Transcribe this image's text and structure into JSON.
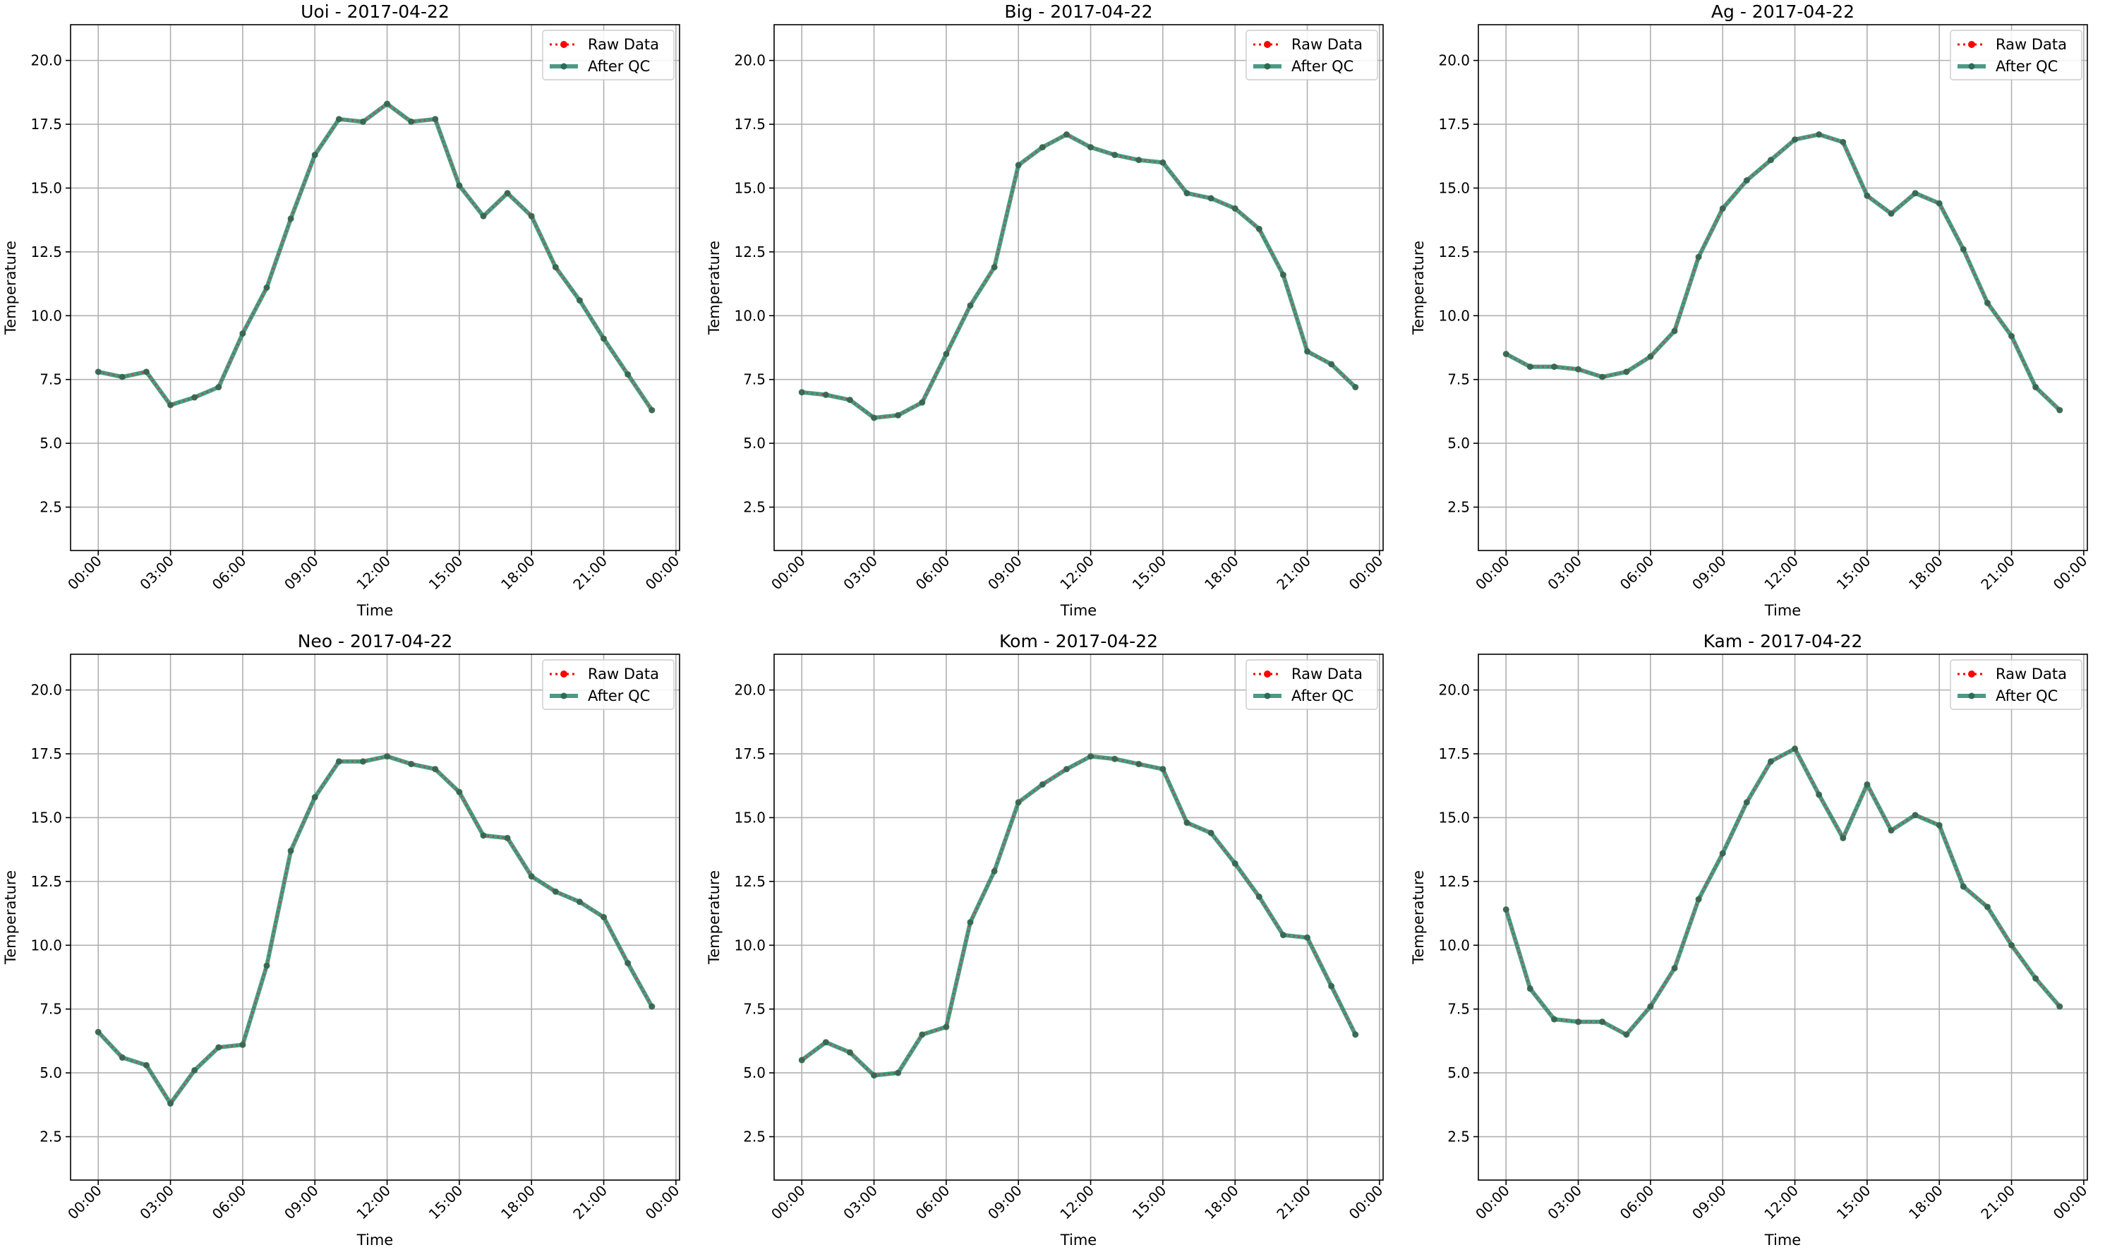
{
  "chart_data": [
    {
      "type": "line",
      "title": "Uoi - 2017-04-22",
      "xlabel": "Time",
      "ylabel": "Temperature",
      "ylim": [
        0.8,
        21.4
      ],
      "yticks": [
        "2.5",
        "5.0",
        "7.5",
        "10.0",
        "12.5",
        "15.0",
        "17.5",
        "20.0"
      ],
      "xticks": [
        "00:00",
        "03:00",
        "06:00",
        "09:00",
        "12:00",
        "15:00",
        "18:00",
        "21:00",
        "00:00"
      ],
      "grid": true,
      "legend": "top-right",
      "x": [
        "00:00",
        "01:00",
        "02:00",
        "03:00",
        "04:00",
        "05:00",
        "06:00",
        "07:00",
        "08:00",
        "09:00",
        "10:00",
        "11:00",
        "12:00",
        "13:00",
        "14:00",
        "15:00",
        "16:00",
        "17:00",
        "18:00",
        "19:00",
        "20:00",
        "21:00",
        "22:00",
        "23:00"
      ],
      "series": [
        {
          "name": "Raw Data",
          "color": "#ff0000",
          "values": [
            7.8,
            7.6,
            7.8,
            6.5,
            6.8,
            7.2,
            9.3,
            11.1,
            13.8,
            16.3,
            17.7,
            17.6,
            18.3,
            17.6,
            17.7,
            15.1,
            13.9,
            14.8,
            13.9,
            11.9,
            10.6,
            9.1,
            7.7,
            6.3
          ]
        },
        {
          "name": "After QC",
          "color": "#2b8a6e",
          "values": [
            7.8,
            7.6,
            7.8,
            6.5,
            6.8,
            7.2,
            9.3,
            11.1,
            13.8,
            16.3,
            17.7,
            17.6,
            18.3,
            17.6,
            17.7,
            15.1,
            13.9,
            14.8,
            13.9,
            11.9,
            10.6,
            9.1,
            7.7,
            6.3
          ]
        }
      ]
    },
    {
      "type": "line",
      "title": "Big - 2017-04-22",
      "xlabel": "Time",
      "ylabel": "Temperature",
      "ylim": [
        0.8,
        21.4
      ],
      "yticks": [
        "2.5",
        "5.0",
        "7.5",
        "10.0",
        "12.5",
        "15.0",
        "17.5",
        "20.0"
      ],
      "xticks": [
        "00:00",
        "03:00",
        "06:00",
        "09:00",
        "12:00",
        "15:00",
        "18:00",
        "21:00",
        "00:00"
      ],
      "grid": true,
      "legend": "top-right",
      "x": [
        "00:00",
        "01:00",
        "02:00",
        "03:00",
        "04:00",
        "05:00",
        "06:00",
        "07:00",
        "08:00",
        "09:00",
        "10:00",
        "11:00",
        "12:00",
        "13:00",
        "14:00",
        "15:00",
        "16:00",
        "17:00",
        "18:00",
        "19:00",
        "20:00",
        "21:00",
        "22:00",
        "23:00"
      ],
      "series": [
        {
          "name": "Raw Data",
          "color": "#ff0000",
          "values": [
            7.0,
            6.9,
            6.7,
            6.0,
            6.1,
            6.6,
            8.5,
            10.4,
            11.9,
            15.9,
            16.6,
            17.1,
            16.6,
            16.3,
            16.1,
            16.0,
            14.8,
            14.6,
            14.2,
            13.4,
            11.6,
            8.6,
            8.1,
            7.2
          ]
        },
        {
          "name": "After QC",
          "color": "#2b8a6e",
          "values": [
            7.0,
            6.9,
            6.7,
            6.0,
            6.1,
            6.6,
            8.5,
            10.4,
            11.9,
            15.9,
            16.6,
            17.1,
            16.6,
            16.3,
            16.1,
            16.0,
            14.8,
            14.6,
            14.2,
            13.4,
            11.6,
            8.6,
            8.1,
            7.2
          ]
        }
      ]
    },
    {
      "type": "line",
      "title": "Ag - 2017-04-22",
      "xlabel": "Time",
      "ylabel": "Temperature",
      "ylim": [
        0.8,
        21.4
      ],
      "yticks": [
        "2.5",
        "5.0",
        "7.5",
        "10.0",
        "12.5",
        "15.0",
        "17.5",
        "20.0"
      ],
      "xticks": [
        "00:00",
        "03:00",
        "06:00",
        "09:00",
        "12:00",
        "15:00",
        "18:00",
        "21:00",
        "00:00"
      ],
      "grid": true,
      "legend": "top-right",
      "x": [
        "00:00",
        "01:00",
        "02:00",
        "03:00",
        "04:00",
        "05:00",
        "06:00",
        "07:00",
        "08:00",
        "09:00",
        "10:00",
        "11:00",
        "12:00",
        "13:00",
        "14:00",
        "15:00",
        "16:00",
        "17:00",
        "18:00",
        "19:00",
        "20:00",
        "21:00",
        "22:00",
        "23:00"
      ],
      "series": [
        {
          "name": "Raw Data",
          "color": "#ff0000",
          "values": [
            8.5,
            8.0,
            8.0,
            7.9,
            7.6,
            7.8,
            8.4,
            9.4,
            12.3,
            14.2,
            15.3,
            16.1,
            16.9,
            17.1,
            16.8,
            14.7,
            14.0,
            14.8,
            14.4,
            12.6,
            10.5,
            9.2,
            7.2,
            6.3
          ]
        },
        {
          "name": "After QC",
          "color": "#2b8a6e",
          "values": [
            8.5,
            8.0,
            8.0,
            7.9,
            7.6,
            7.8,
            8.4,
            9.4,
            12.3,
            14.2,
            15.3,
            16.1,
            16.9,
            17.1,
            16.8,
            14.7,
            14.0,
            14.8,
            14.4,
            12.6,
            10.5,
            9.2,
            7.2,
            6.3
          ]
        }
      ]
    },
    {
      "type": "line",
      "title": "Neo - 2017-04-22",
      "xlabel": "Time",
      "ylabel": "Temperature",
      "ylim": [
        0.8,
        21.4
      ],
      "yticks": [
        "2.5",
        "5.0",
        "7.5",
        "10.0",
        "12.5",
        "15.0",
        "17.5",
        "20.0"
      ],
      "xticks": [
        "00:00",
        "03:00",
        "06:00",
        "09:00",
        "12:00",
        "15:00",
        "18:00",
        "21:00",
        "00:00"
      ],
      "grid": true,
      "legend": "top-right",
      "x": [
        "00:00",
        "01:00",
        "02:00",
        "03:00",
        "04:00",
        "05:00",
        "06:00",
        "07:00",
        "08:00",
        "09:00",
        "10:00",
        "11:00",
        "12:00",
        "13:00",
        "14:00",
        "15:00",
        "16:00",
        "17:00",
        "18:00",
        "19:00",
        "20:00",
        "21:00",
        "22:00",
        "23:00"
      ],
      "series": [
        {
          "name": "Raw Data",
          "color": "#ff0000",
          "values": [
            6.6,
            5.6,
            5.3,
            3.8,
            5.1,
            6.0,
            6.1,
            9.2,
            13.7,
            15.8,
            17.2,
            17.2,
            17.4,
            17.1,
            16.9,
            16.0,
            14.3,
            14.2,
            12.7,
            12.1,
            11.7,
            11.1,
            9.3,
            7.6
          ]
        },
        {
          "name": "After QC",
          "color": "#2b8a6e",
          "values": [
            6.6,
            5.6,
            5.3,
            3.8,
            5.1,
            6.0,
            6.1,
            9.2,
            13.7,
            15.8,
            17.2,
            17.2,
            17.4,
            17.1,
            16.9,
            16.0,
            14.3,
            14.2,
            12.7,
            12.1,
            11.7,
            11.1,
            9.3,
            7.6
          ]
        }
      ]
    },
    {
      "type": "line",
      "title": "Kom - 2017-04-22",
      "xlabel": "Time",
      "ylabel": "Temperature",
      "ylim": [
        0.8,
        21.4
      ],
      "yticks": [
        "2.5",
        "5.0",
        "7.5",
        "10.0",
        "12.5",
        "15.0",
        "17.5",
        "20.0"
      ],
      "xticks": [
        "00:00",
        "03:00",
        "06:00",
        "09:00",
        "12:00",
        "15:00",
        "18:00",
        "21:00",
        "00:00"
      ],
      "grid": true,
      "legend": "top-right",
      "x": [
        "00:00",
        "01:00",
        "02:00",
        "03:00",
        "04:00",
        "05:00",
        "06:00",
        "07:00",
        "08:00",
        "09:00",
        "10:00",
        "11:00",
        "12:00",
        "13:00",
        "14:00",
        "15:00",
        "16:00",
        "17:00",
        "18:00",
        "19:00",
        "20:00",
        "21:00",
        "22:00",
        "23:00"
      ],
      "series": [
        {
          "name": "Raw Data",
          "color": "#ff0000",
          "values": [
            5.5,
            6.2,
            5.8,
            4.9,
            5.0,
            6.5,
            6.8,
            10.9,
            12.9,
            15.6,
            16.3,
            16.9,
            17.4,
            17.3,
            17.1,
            16.9,
            14.8,
            14.4,
            13.2,
            11.9,
            10.4,
            10.3,
            8.4,
            6.5
          ]
        },
        {
          "name": "After QC",
          "color": "#2b8a6e",
          "values": [
            5.5,
            6.2,
            5.8,
            4.9,
            5.0,
            6.5,
            6.8,
            10.9,
            12.9,
            15.6,
            16.3,
            16.9,
            17.4,
            17.3,
            17.1,
            16.9,
            14.8,
            14.4,
            13.2,
            11.9,
            10.4,
            10.3,
            8.4,
            6.5
          ]
        }
      ]
    },
    {
      "type": "line",
      "title": "Kam - 2017-04-22",
      "xlabel": "Time",
      "ylabel": "Temperature",
      "ylim": [
        0.8,
        21.4
      ],
      "yticks": [
        "2.5",
        "5.0",
        "7.5",
        "10.0",
        "12.5",
        "15.0",
        "17.5",
        "20.0"
      ],
      "xticks": [
        "00:00",
        "03:00",
        "06:00",
        "09:00",
        "12:00",
        "15:00",
        "18:00",
        "21:00",
        "00:00"
      ],
      "grid": true,
      "legend": "top-right",
      "x": [
        "00:00",
        "01:00",
        "02:00",
        "03:00",
        "04:00",
        "05:00",
        "06:00",
        "07:00",
        "08:00",
        "09:00",
        "10:00",
        "11:00",
        "12:00",
        "13:00",
        "14:00",
        "15:00",
        "16:00",
        "17:00",
        "18:00",
        "19:00",
        "20:00",
        "21:00",
        "22:00",
        "23:00"
      ],
      "series": [
        {
          "name": "Raw Data",
          "color": "#ff0000",
          "values": [
            11.4,
            8.3,
            7.1,
            7.0,
            7.0,
            6.5,
            7.6,
            9.1,
            11.8,
            13.6,
            15.6,
            17.2,
            17.7,
            15.9,
            14.2,
            16.3,
            14.5,
            15.1,
            14.7,
            12.3,
            11.5,
            10.0,
            8.7,
            7.6
          ]
        },
        {
          "name": "After QC",
          "color": "#2b8a6e",
          "values": [
            11.4,
            8.3,
            7.1,
            7.0,
            7.0,
            6.5,
            7.6,
            9.1,
            11.8,
            13.6,
            15.6,
            17.2,
            17.7,
            15.9,
            14.2,
            16.3,
            14.5,
            15.1,
            14.7,
            12.3,
            11.5,
            10.0,
            8.7,
            7.6
          ]
        }
      ]
    }
  ]
}
